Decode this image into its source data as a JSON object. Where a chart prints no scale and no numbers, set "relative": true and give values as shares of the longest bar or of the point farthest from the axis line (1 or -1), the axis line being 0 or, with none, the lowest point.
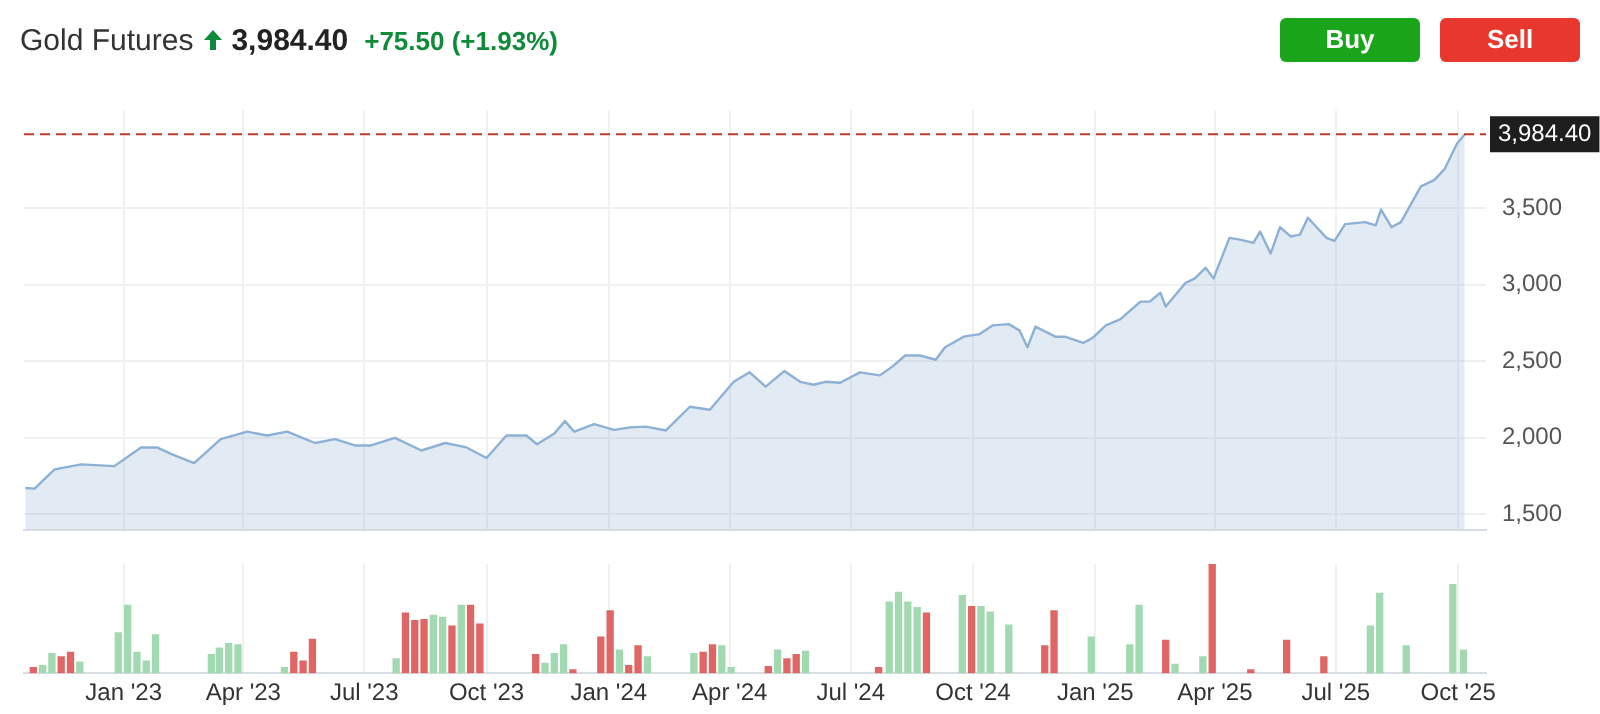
{
  "chart_data": [
    {
      "type": "area",
      "title": "Gold Futures",
      "subtitle": "3,984.40",
      "annotations": [
        "+75.50 (+1.93%)",
        "Buy",
        "Sell"
      ],
      "x": [
        "2022-10-19",
        "2022-10-26",
        "2022-11-10",
        "2022-11-30",
        "2022-12-25",
        "2023-01-14",
        "2023-01-26",
        "2023-02-06",
        "2023-02-23",
        "2023-03-15",
        "2023-04-04",
        "2023-04-19",
        "2023-05-04",
        "2023-05-25",
        "2023-06-09",
        "2023-06-24",
        "2023-07-06",
        "2023-07-24",
        "2023-08-13",
        "2023-08-31",
        "2023-09-16",
        "2023-10-01",
        "2023-10-16",
        "2023-10-31",
        "2023-11-08",
        "2023-11-21",
        "2023-11-29",
        "2023-12-06",
        "2023-12-21",
        "2024-01-05",
        "2024-01-17",
        "2024-01-29",
        "2024-02-13",
        "2024-03-02",
        "2024-03-17",
        "2024-04-04",
        "2024-04-16",
        "2024-04-28",
        "2024-05-12",
        "2024-05-24",
        "2024-06-03",
        "2024-06-12",
        "2024-06-23",
        "2024-07-08",
        "2024-07-23",
        "2024-08-02",
        "2024-08-11",
        "2024-08-22",
        "2024-09-03",
        "2024-09-10",
        "2024-09-24",
        "2024-10-06",
        "2024-10-16",
        "2024-10-28",
        "2024-11-05",
        "2024-11-11",
        "2024-11-17",
        "2024-12-02",
        "2024-12-09",
        "2024-12-23",
        "2024-12-30",
        "2025-01-09",
        "2025-01-20",
        "2025-02-04",
        "2025-02-11",
        "2025-02-19",
        "2025-02-23",
        "2025-03-10",
        "2025-03-17",
        "2025-03-25",
        "2025-03-31",
        "2025-04-12",
        "2025-04-20",
        "2025-04-30",
        "2025-05-05",
        "2025-05-13",
        "2025-05-20",
        "2025-05-28",
        "2025-06-04",
        "2025-06-10",
        "2025-06-24",
        "2025-06-30",
        "2025-07-08",
        "2025-07-23",
        "2025-07-31",
        "2025-08-04",
        "2025-08-12",
        "2025-08-19",
        "2025-09-03",
        "2025-09-13",
        "2025-09-21",
        "2025-09-30",
        "2025-10-06"
      ],
      "series": [
        {
          "color": "#8db1d4",
          "values": [
            1672,
            1668,
            1794,
            1826,
            1815,
            1937,
            1937,
            1893,
            1835,
            1991,
            2040,
            2015,
            2040,
            1966,
            1991,
            1950,
            1950,
            1999,
            1917,
            1966,
            1937,
            1868,
            2015,
            2015,
            1958,
            2028,
            2109,
            2040,
            2089,
            2052,
            2068,
            2073,
            2048,
            2203,
            2183,
            2366,
            2428,
            2334,
            2436,
            2366,
            2347,
            2366,
            2360,
            2428,
            2408,
            2470,
            2538,
            2538,
            2510,
            2592,
            2661,
            2678,
            2735,
            2743,
            2702,
            2592,
            2727,
            2661,
            2661,
            2620,
            2653,
            2735,
            2776,
            2890,
            2890,
            2948,
            2858,
            3013,
            3042,
            3111,
            3042,
            3307,
            3295,
            3274,
            3348,
            3205,
            3377,
            3316,
            3328,
            3438,
            3307,
            3287,
            3397,
            3410,
            3389,
            3492,
            3377,
            3410,
            3643,
            3684,
            3758,
            3921,
            3984
          ]
        }
      ],
      "xlim": [
        "2022-10-18",
        "2025-10-22"
      ],
      "xticks": [
        {
          "value": "2023-01-01",
          "label": null
        },
        {
          "value": "2023-04-01",
          "label": null
        },
        {
          "value": "2023-07-01",
          "label": null
        },
        {
          "value": "2023-10-01",
          "label": null
        },
        {
          "value": "2024-01-01",
          "label": null
        },
        {
          "value": "2024-04-01",
          "label": null
        },
        {
          "value": "2024-07-01",
          "label": null
        },
        {
          "value": "2024-10-01",
          "label": null
        },
        {
          "value": "2025-01-01",
          "label": null
        },
        {
          "value": "2025-04-01",
          "label": null
        },
        {
          "value": "2025-07-01",
          "label": null
        },
        {
          "value": "2025-10-01",
          "label": null
        }
      ],
      "ylim": [
        1400,
        4140
      ],
      "yticks": [
        {
          "value": 1500,
          "label": "1,500"
        },
        {
          "value": 2000,
          "label": "2,000"
        },
        {
          "value": 2500,
          "label": "2,500"
        },
        {
          "value": 3000,
          "label": "3,000"
        },
        {
          "value": 3500,
          "label": "3,500"
        }
      ],
      "ref_lines": [
        {
          "axis": "y",
          "value": 3984.4,
          "label": "3,984.40",
          "color": "#c0392b",
          "line_style": "dashed"
        }
      ],
      "tick_labels": "y",
      "grid": true,
      "legend": false
    },
    {
      "type": "bar",
      "relative": true,
      "x": [
        "2022-10-25",
        "2022-11-01",
        "2022-11-08",
        "2022-11-15",
        "2022-11-22",
        "2022-11-29",
        "2022-12-28",
        "2023-01-04",
        "2023-01-11",
        "2023-01-18",
        "2023-01-25",
        "2023-03-08",
        "2023-03-14",
        "2023-03-21",
        "2023-03-28",
        "2023-05-02",
        "2023-05-09",
        "2023-05-16",
        "2023-05-23",
        "2023-07-25",
        "2023-08-01",
        "2023-08-08",
        "2023-08-15",
        "2023-08-22",
        "2023-08-29",
        "2023-09-05",
        "2023-09-12",
        "2023-09-19",
        "2023-09-26",
        "2023-11-07",
        "2023-11-14",
        "2023-11-21",
        "2023-11-28",
        "2023-12-05",
        "2023-12-26",
        "2024-01-02",
        "2024-01-09",
        "2024-01-16",
        "2024-01-23",
        "2024-01-30",
        "2024-03-05",
        "2024-03-12",
        "2024-03-19",
        "2024-03-26",
        "2024-04-02",
        "2024-04-30",
        "2024-05-07",
        "2024-05-14",
        "2024-05-21",
        "2024-05-28",
        "2024-07-22",
        "2024-07-30",
        "2024-08-06",
        "2024-08-13",
        "2024-08-20",
        "2024-08-27",
        "2024-09-23",
        "2024-09-30",
        "2024-10-07",
        "2024-10-14",
        "2024-10-28",
        "2024-11-24",
        "2024-12-01",
        "2024-12-29",
        "2025-01-27",
        "2025-02-03",
        "2025-02-23",
        "2025-03-02",
        "2025-03-23",
        "2025-03-30",
        "2025-04-28",
        "2025-05-25",
        "2025-06-22",
        "2025-07-27",
        "2025-08-03",
        "2025-08-23",
        "2025-09-27",
        "2025-10-05"
      ],
      "values": [
        0.05,
        0.07,
        0.18,
        0.15,
        0.19,
        0.1,
        0.37,
        0.62,
        0.19,
        0.11,
        0.35,
        0.17,
        0.23,
        0.27,
        0.26,
        0.05,
        0.19,
        0.11,
        0.31,
        0.13,
        0.55,
        0.48,
        0.49,
        0.53,
        0.51,
        0.43,
        0.62,
        0.62,
        0.45,
        0.17,
        0.09,
        0.18,
        0.26,
        0.03,
        0.33,
        0.57,
        0.21,
        0.07,
        0.25,
        0.15,
        0.18,
        0.19,
        0.26,
        0.25,
        0.05,
        0.06,
        0.21,
        0.13,
        0.17,
        0.2,
        0.05,
        0.65,
        0.74,
        0.65,
        0.6,
        0.55,
        0.71,
        0.61,
        0.61,
        0.56,
        0.44,
        0.25,
        0.57,
        0.33,
        0.26,
        0.62,
        0.3,
        0.08,
        0.15,
        1,
        0.03,
        0.3,
        0.15,
        0.43,
        0.73,
        0.25,
        0.81,
        0.21
      ],
      "colors": [
        "#e06666",
        "#a3d9b1",
        "#a3d9b1",
        "#e06666",
        "#e06666",
        "#a3d9b1",
        "#a3d9b1",
        "#a3d9b1",
        "#a3d9b1",
        "#a3d9b1",
        "#a3d9b1",
        "#a3d9b1",
        "#a3d9b1",
        "#a3d9b1",
        "#a3d9b1",
        "#a3d9b1",
        "#e06666",
        "#e06666",
        "#e06666",
        "#a3d9b1",
        "#e06666",
        "#e06666",
        "#e06666",
        "#a3d9b1",
        "#a3d9b1",
        "#e06666",
        "#a3d9b1",
        "#e06666",
        "#e06666",
        "#e06666",
        "#a3d9b1",
        "#a3d9b1",
        "#a3d9b1",
        "#e06666",
        "#e06666",
        "#e06666",
        "#a3d9b1",
        "#e06666",
        "#e06666",
        "#a3d9b1",
        "#a3d9b1",
        "#e06666",
        "#e06666",
        "#a3d9b1",
        "#a3d9b1",
        "#e06666",
        "#a3d9b1",
        "#e06666",
        "#e06666",
        "#a3d9b1",
        "#e06666",
        "#a3d9b1",
        "#a3d9b1",
        "#a3d9b1",
        "#a3d9b1",
        "#e06666",
        "#a3d9b1",
        "#e06666",
        "#a3d9b1",
        "#a3d9b1",
        "#a3d9b1",
        "#e06666",
        "#e06666",
        "#a3d9b1",
        "#a3d9b1",
        "#a3d9b1",
        "#e06666",
        "#a3d9b1",
        "#a3d9b1",
        "#e06666",
        "#e06666",
        "#e06666",
        "#e06666",
        "#a3d9b1",
        "#a3d9b1",
        "#a3d9b1",
        "#a3d9b1",
        "#a3d9b1"
      ],
      "xlim": [
        "2022-10-18",
        "2025-10-22"
      ],
      "xticks": [
        {
          "value": "2023-01-01",
          "label": "Jan '23"
        },
        {
          "value": "2023-04-01",
          "label": "Apr '23"
        },
        {
          "value": "2023-07-01",
          "label": "Jul '23"
        },
        {
          "value": "2023-10-01",
          "label": "Oct '23"
        },
        {
          "value": "2024-01-01",
          "label": "Jan '24"
        },
        {
          "value": "2024-04-01",
          "label": "Apr '24"
        },
        {
          "value": "2024-07-01",
          "label": "Jul '24"
        },
        {
          "value": "2024-10-01",
          "label": "Oct '24"
        },
        {
          "value": "2025-01-01",
          "label": "Jan '25"
        },
        {
          "value": "2025-04-01",
          "label": "Apr '25"
        },
        {
          "value": "2025-07-01",
          "label": "Jul '25"
        },
        {
          "value": "2025-10-01",
          "label": "Oct '25"
        }
      ],
      "tick_labels": "x",
      "grid": "x",
      "legend": false
    }
  ]
}
